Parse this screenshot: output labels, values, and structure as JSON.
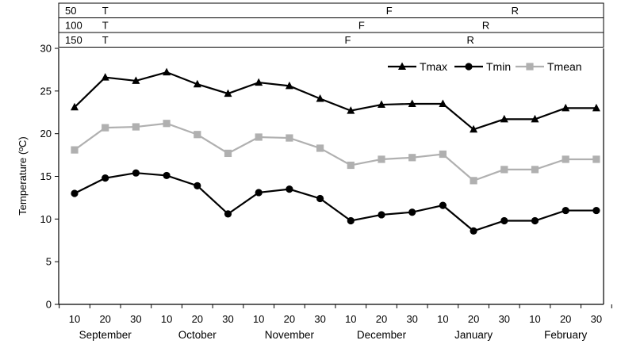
{
  "chart_data": {
    "type": "line",
    "ylabel": "Temperature (ºC)",
    "ylim": [
      0,
      30
    ],
    "yticks": [
      0,
      5,
      10,
      15,
      20,
      25,
      30
    ],
    "grid": false,
    "legend_position": "top-right",
    "x": [
      "10",
      "20",
      "30",
      "10",
      "20",
      "30",
      "10",
      "20",
      "30",
      "10",
      "20",
      "30",
      "10",
      "20",
      "30",
      "10",
      "20",
      "30"
    ],
    "months": [
      "September",
      "October",
      "November",
      "December",
      "January",
      "February"
    ],
    "series": [
      {
        "name": "Tmax",
        "marker": "triangle",
        "color": "#000000",
        "values": [
          23.1,
          26.6,
          26.2,
          27.2,
          25.8,
          24.7,
          26.0,
          25.6,
          24.1,
          22.7,
          23.4,
          23.5,
          23.5,
          20.5,
          21.7,
          21.7,
          23.0,
          23.0
        ]
      },
      {
        "name": "Tmin",
        "marker": "circle",
        "color": "#000000",
        "values": [
          13.0,
          14.8,
          15.4,
          15.1,
          13.9,
          10.6,
          13.1,
          13.5,
          12.4,
          9.8,
          10.5,
          10.8,
          11.6,
          8.6,
          9.8,
          9.8,
          11.0,
          11.0
        ]
      },
      {
        "name": "Tmean",
        "marker": "square",
        "color": "#b0b0b0",
        "values": [
          18.1,
          20.7,
          20.8,
          21.2,
          19.9,
          17.7,
          19.6,
          19.5,
          18.3,
          16.3,
          17.0,
          17.2,
          17.6,
          14.5,
          15.8,
          15.8,
          17.0,
          17.0
        ]
      }
    ],
    "bands": [
      {
        "label": "50",
        "events": [
          {
            "letter": "T",
            "index": 1
          },
          {
            "letter": "F",
            "index": 10.25
          },
          {
            "letter": "R",
            "index": 14.35
          }
        ]
      },
      {
        "label": "100",
        "events": [
          {
            "letter": "T",
            "index": 1
          },
          {
            "letter": "F",
            "index": 9.35
          },
          {
            "letter": "R",
            "index": 13.4
          }
        ]
      },
      {
        "label": "150",
        "events": [
          {
            "letter": "T",
            "index": 1
          },
          {
            "letter": "F",
            "index": 8.9
          },
          {
            "letter": "R",
            "index": 12.9
          }
        ]
      }
    ]
  }
}
